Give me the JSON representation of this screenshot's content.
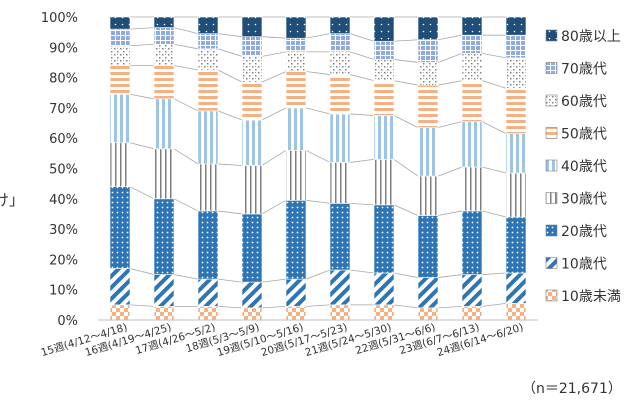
{
  "chart_data": {
    "type": "bar",
    "stacked": true,
    "normalized": true,
    "connector_lines": true,
    "grid": false,
    "legend_position": "right",
    "side_label": "け」",
    "note": "（n＝21,671）",
    "ylim": [
      0,
      100
    ],
    "y_ticks": [
      "0%",
      "10%",
      "20%",
      "30%",
      "40%",
      "50%",
      "60%",
      "70%",
      "80%",
      "90%",
      "100%"
    ],
    "categories": [
      "15週(4/12～4/18)",
      "16週(4/19～4/25)",
      "17週(4/26～5/2)",
      "18週(5/3～5/9)",
      "19週(5/10～5/16)",
      "20週(5/17～5/23)",
      "21週(5/24～5/30)",
      "22週(5/31～6/6)",
      "23週(6/7～6/13)",
      "24週(6/14～6/20)"
    ],
    "series": [
      {
        "name": "10歳未満",
        "color": "#f4b183",
        "pattern": "check",
        "values": [
          5.0,
          4.5,
          4.5,
          4.0,
          4.5,
          5.0,
          5.0,
          4.0,
          4.5,
          5.5
        ]
      },
      {
        "name": "10歳代",
        "color": "#2e75b6",
        "pattern": "diag",
        "values": [
          12.0,
          10.5,
          9.0,
          8.5,
          9.0,
          11.5,
          10.5,
          10.0,
          10.5,
          10.0
        ]
      },
      {
        "name": "20歳代",
        "color": "#2e75b6",
        "pattern": "dots",
        "values": [
          27.0,
          25.0,
          22.5,
          22.5,
          26.0,
          22.0,
          22.5,
          20.5,
          21.0,
          18.5
        ]
      },
      {
        "name": "30歳代",
        "color": "#7f7f7f",
        "pattern": "vlines",
        "values": [
          14.5,
          16.5,
          15.5,
          16.0,
          16.5,
          13.5,
          15.0,
          13.0,
          14.5,
          14.5
        ]
      },
      {
        "name": "40歳代",
        "color": "#9dc3e6",
        "pattern": "vstripes",
        "values": [
          16.0,
          16.5,
          17.5,
          15.0,
          14.0,
          16.0,
          14.5,
          16.0,
          15.0,
          13.0
        ]
      },
      {
        "name": "50歳代",
        "color": "#f4b183",
        "pattern": "hstripes",
        "values": [
          9.5,
          11.0,
          13.5,
          12.5,
          12.0,
          13.0,
          11.5,
          14.0,
          13.5,
          15.0
        ]
      },
      {
        "name": "60歳代",
        "color": "#808080",
        "pattern": "confetti",
        "values": [
          6.5,
          7.0,
          7.0,
          8.5,
          6.5,
          7.5,
          7.0,
          7.5,
          9.0,
          10.0
        ]
      },
      {
        "name": "70歳代",
        "color": "#8faadc",
        "pattern": "grid",
        "values": [
          5.5,
          5.5,
          5.0,
          6.5,
          4.5,
          6.0,
          6.0,
          7.5,
          6.0,
          7.5
        ]
      },
      {
        "name": "80歳以上",
        "color": "#1f4e79",
        "pattern": "sparse",
        "values": [
          4.0,
          3.5,
          5.5,
          6.5,
          7.0,
          5.5,
          8.0,
          7.5,
          6.0,
          6.0
        ]
      }
    ]
  }
}
